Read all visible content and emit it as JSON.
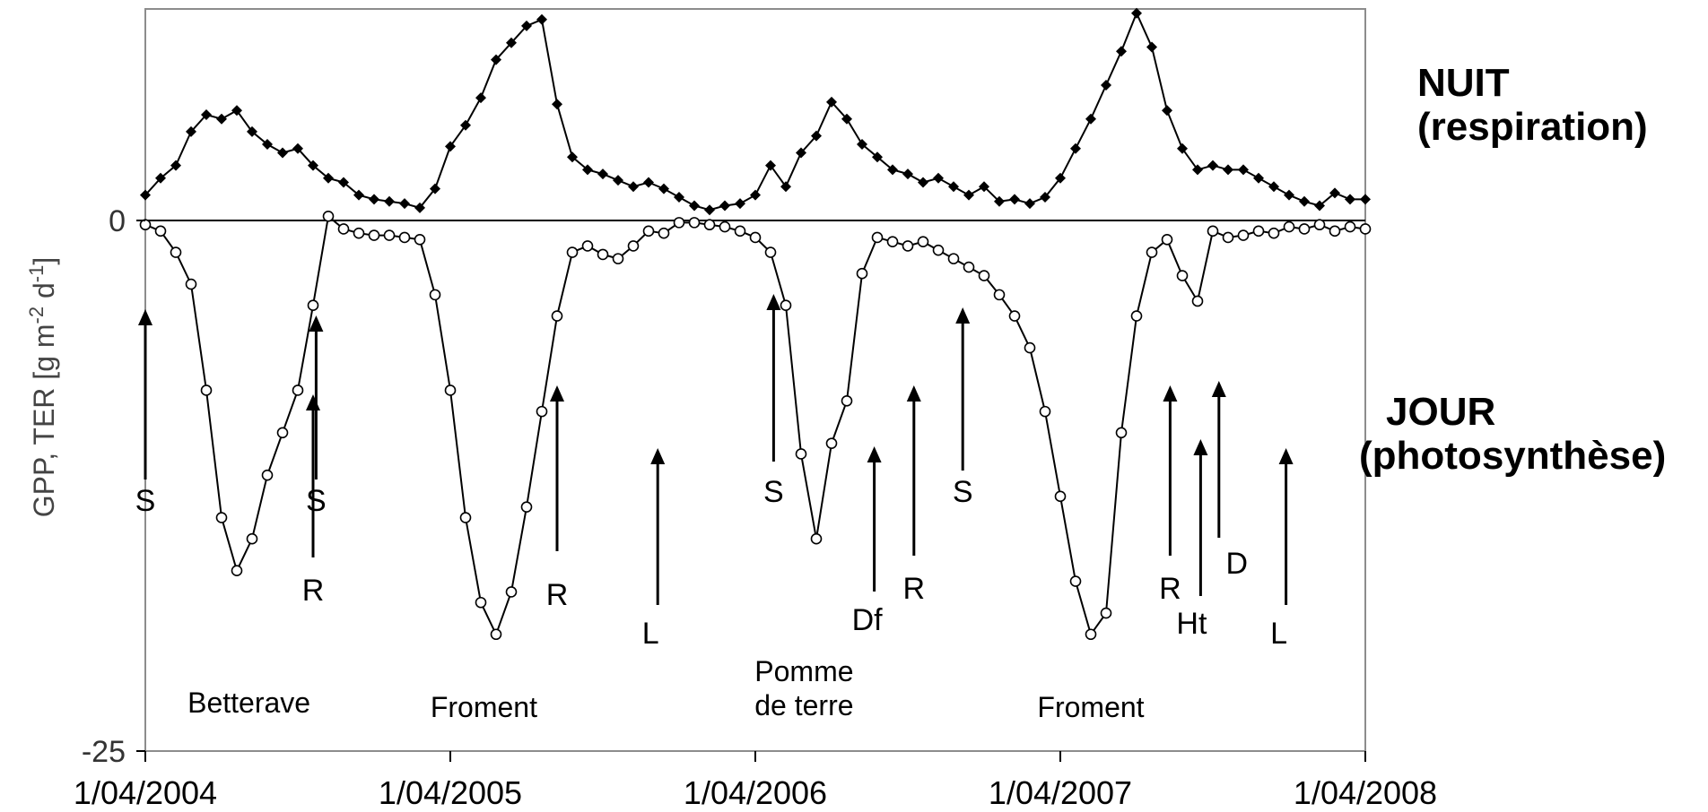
{
  "chart_data": {
    "type": "scatter",
    "title": "",
    "ylabel": "GPP, TER [g m-2 d-1]",
    "ylabel_parts": {
      "prefix": "GPP, TER [g m",
      "exp1": "-2",
      "mid": " d",
      "exp2": "-1",
      "suffix": "]"
    },
    "ylim": [
      -25,
      10
    ],
    "y_ticks": [
      {
        "value": 0,
        "label": "0"
      },
      {
        "value": -25,
        "label": "-25"
      }
    ],
    "x_ticks": [
      {
        "value": 0,
        "label": "1/04/2004"
      },
      {
        "value": 1,
        "label": "1/04/2005"
      },
      {
        "value": 2,
        "label": "1/04/2006"
      },
      {
        "value": 3,
        "label": "1/04/2007"
      },
      {
        "value": 4,
        "label": "1/04/2008"
      }
    ],
    "xlim": [
      0,
      4
    ],
    "x_unit": "years since 1/04/2004",
    "grid": false,
    "zero_line": true,
    "series": [
      {
        "name": "NUIT (respiration)",
        "marker": "filled-diamond",
        "color": "#000000",
        "x": [
          0.0,
          0.05,
          0.1,
          0.15,
          0.2,
          0.25,
          0.3,
          0.35,
          0.4,
          0.45,
          0.5,
          0.55,
          0.6,
          0.65,
          0.7,
          0.75,
          0.8,
          0.85,
          0.9,
          0.95,
          1.0,
          1.05,
          1.1,
          1.15,
          1.2,
          1.25,
          1.3,
          1.35,
          1.4,
          1.45,
          1.5,
          1.55,
          1.6,
          1.65,
          1.7,
          1.75,
          1.8,
          1.85,
          1.9,
          1.95,
          2.0,
          2.05,
          2.1,
          2.15,
          2.2,
          2.25,
          2.3,
          2.35,
          2.4,
          2.45,
          2.5,
          2.55,
          2.6,
          2.65,
          2.7,
          2.75,
          2.8,
          2.85,
          2.9,
          2.95,
          3.0,
          3.05,
          3.1,
          3.15,
          3.2,
          3.25,
          3.3,
          3.35,
          3.4,
          3.45,
          3.5,
          3.55,
          3.6,
          3.65,
          3.7,
          3.75,
          3.8,
          3.85,
          3.9,
          3.95,
          4.0
        ],
        "y": [
          1.2,
          2.0,
          2.6,
          4.2,
          5.0,
          4.8,
          5.2,
          4.2,
          3.6,
          3.2,
          3.4,
          2.6,
          2.0,
          1.8,
          1.2,
          1.0,
          0.9,
          0.8,
          0.6,
          1.5,
          3.5,
          4.5,
          5.8,
          7.6,
          8.4,
          9.2,
          9.5,
          5.5,
          3.0,
          2.4,
          2.2,
          1.9,
          1.6,
          1.8,
          1.5,
          1.1,
          0.7,
          0.5,
          0.7,
          0.8,
          1.2,
          2.6,
          1.6,
          3.2,
          4.0,
          5.6,
          4.8,
          3.6,
          3.0,
          2.4,
          2.2,
          1.8,
          2.0,
          1.6,
          1.2,
          1.6,
          0.9,
          1.0,
          0.8,
          1.1,
          2.0,
          3.4,
          4.8,
          6.4,
          8.0,
          9.8,
          8.2,
          5.2,
          3.4,
          2.4,
          2.6,
          2.4,
          2.4,
          2.0,
          1.6,
          1.2,
          0.9,
          0.7,
          1.3,
          1.0,
          1.0
        ]
      },
      {
        "name": "JOUR (photosynthèse)",
        "marker": "open-circle",
        "color": "#000000",
        "x": [
          0.0,
          0.05,
          0.1,
          0.15,
          0.2,
          0.25,
          0.3,
          0.35,
          0.4,
          0.45,
          0.5,
          0.55,
          0.6,
          0.65,
          0.7,
          0.75,
          0.8,
          0.85,
          0.9,
          0.95,
          1.0,
          1.05,
          1.1,
          1.15,
          1.2,
          1.25,
          1.3,
          1.35,
          1.4,
          1.45,
          1.5,
          1.55,
          1.6,
          1.65,
          1.7,
          1.75,
          1.8,
          1.85,
          1.9,
          1.95,
          2.0,
          2.05,
          2.1,
          2.15,
          2.2,
          2.25,
          2.3,
          2.35,
          2.4,
          2.45,
          2.5,
          2.55,
          2.6,
          2.65,
          2.7,
          2.75,
          2.8,
          2.85,
          2.9,
          2.95,
          3.0,
          3.05,
          3.1,
          3.15,
          3.2,
          3.25,
          3.3,
          3.35,
          3.4,
          3.45,
          3.5,
          3.55,
          3.6,
          3.65,
          3.7,
          3.75,
          3.8,
          3.85,
          3.9,
          3.95,
          4.0
        ],
        "y": [
          -0.2,
          -0.5,
          -1.5,
          -3.0,
          -8.0,
          -14.0,
          -16.5,
          -15.0,
          -12.0,
          -10.0,
          -8.0,
          -4.0,
          0.2,
          -0.4,
          -0.6,
          -0.7,
          -0.7,
          -0.8,
          -0.9,
          -3.5,
          -8.0,
          -14.0,
          -18.0,
          -19.5,
          -17.5,
          -13.5,
          -9.0,
          -4.5,
          -1.5,
          -1.2,
          -1.6,
          -1.8,
          -1.2,
          -0.5,
          -0.6,
          -0.1,
          -0.1,
          -0.2,
          -0.3,
          -0.5,
          -0.8,
          -1.5,
          -4.0,
          -11.0,
          -15.0,
          -10.5,
          -8.5,
          -2.5,
          -0.8,
          -1.0,
          -1.2,
          -1.0,
          -1.4,
          -1.8,
          -2.2,
          -2.6,
          -3.5,
          -4.5,
          -6.0,
          -9.0,
          -13.0,
          -17.0,
          -19.5,
          -18.5,
          -10.0,
          -4.5,
          -1.5,
          -0.9,
          -2.6,
          -3.8,
          -0.5,
          -0.8,
          -0.7,
          -0.5,
          -0.6,
          -0.3,
          -0.4,
          -0.2,
          -0.5,
          -0.3,
          -0.4
        ]
      }
    ],
    "events": [
      {
        "x": 0.0,
        "label": "S",
        "kind": "S"
      },
      {
        "x": 0.56,
        "label": "S",
        "kind": "S"
      },
      {
        "x": 0.55,
        "label": "R",
        "kind": "R"
      },
      {
        "x": 1.35,
        "label": "R",
        "kind": "R"
      },
      {
        "x": 1.68,
        "label": "L",
        "kind": "L"
      },
      {
        "x": 2.06,
        "label": "S",
        "kind": "S"
      },
      {
        "x": 2.39,
        "label": "Df",
        "kind": "Df"
      },
      {
        "x": 2.52,
        "label": "R",
        "kind": "R"
      },
      {
        "x": 2.68,
        "label": "S",
        "kind": "S"
      },
      {
        "x": 3.36,
        "label": "R",
        "kind": "R"
      },
      {
        "x": 3.46,
        "label": "Ht",
        "kind": "Ht"
      },
      {
        "x": 3.52,
        "label": "D",
        "kind": "D"
      },
      {
        "x": 3.74,
        "label": "L",
        "kind": "L"
      }
    ],
    "crops": [
      {
        "x": 0.34,
        "label": [
          "Betterave"
        ]
      },
      {
        "x": 1.11,
        "label": [
          "Froment"
        ]
      },
      {
        "x": 2.16,
        "label": [
          "Pomme",
          "de terre"
        ]
      },
      {
        "x": 3.1,
        "label": [
          "Froment"
        ]
      }
    ],
    "side_labels": {
      "night": [
        "NUIT",
        "(respiration)"
      ],
      "day": [
        "JOUR",
        "(photosynthèse)"
      ]
    }
  }
}
